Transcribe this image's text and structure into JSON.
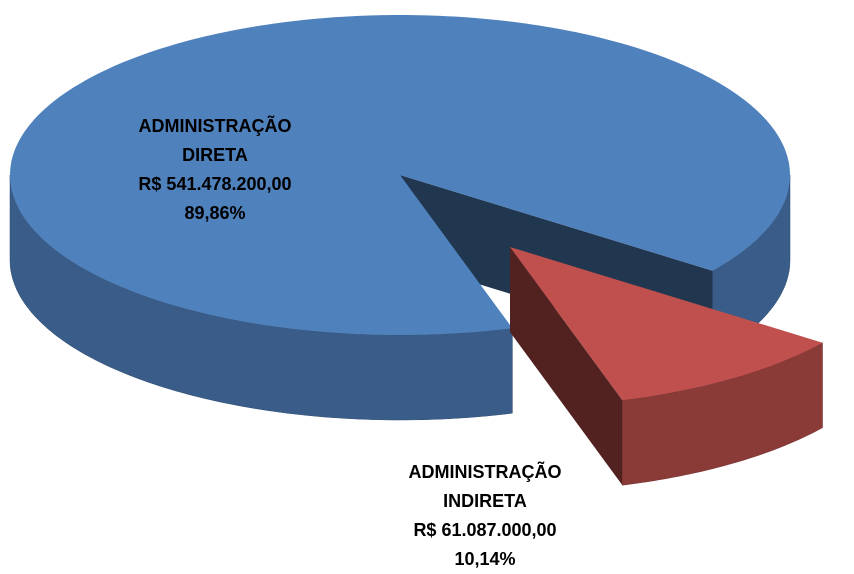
{
  "chart_data": {
    "type": "pie",
    "categories": [
      "ADMINISTRAÇÃO DIRETA",
      "ADMINISTRAÇÃO INDIRETA"
    ],
    "values": [
      89.86,
      10.14
    ],
    "value_labels": [
      "89,86%",
      "10,14%"
    ],
    "amounts": [
      541478200,
      61087000
    ],
    "amount_labels": [
      "R$ 541.478.200,00",
      "R$ 61.087.000,00"
    ],
    "colors": [
      "#4f81bd",
      "#c0504d"
    ]
  }
}
